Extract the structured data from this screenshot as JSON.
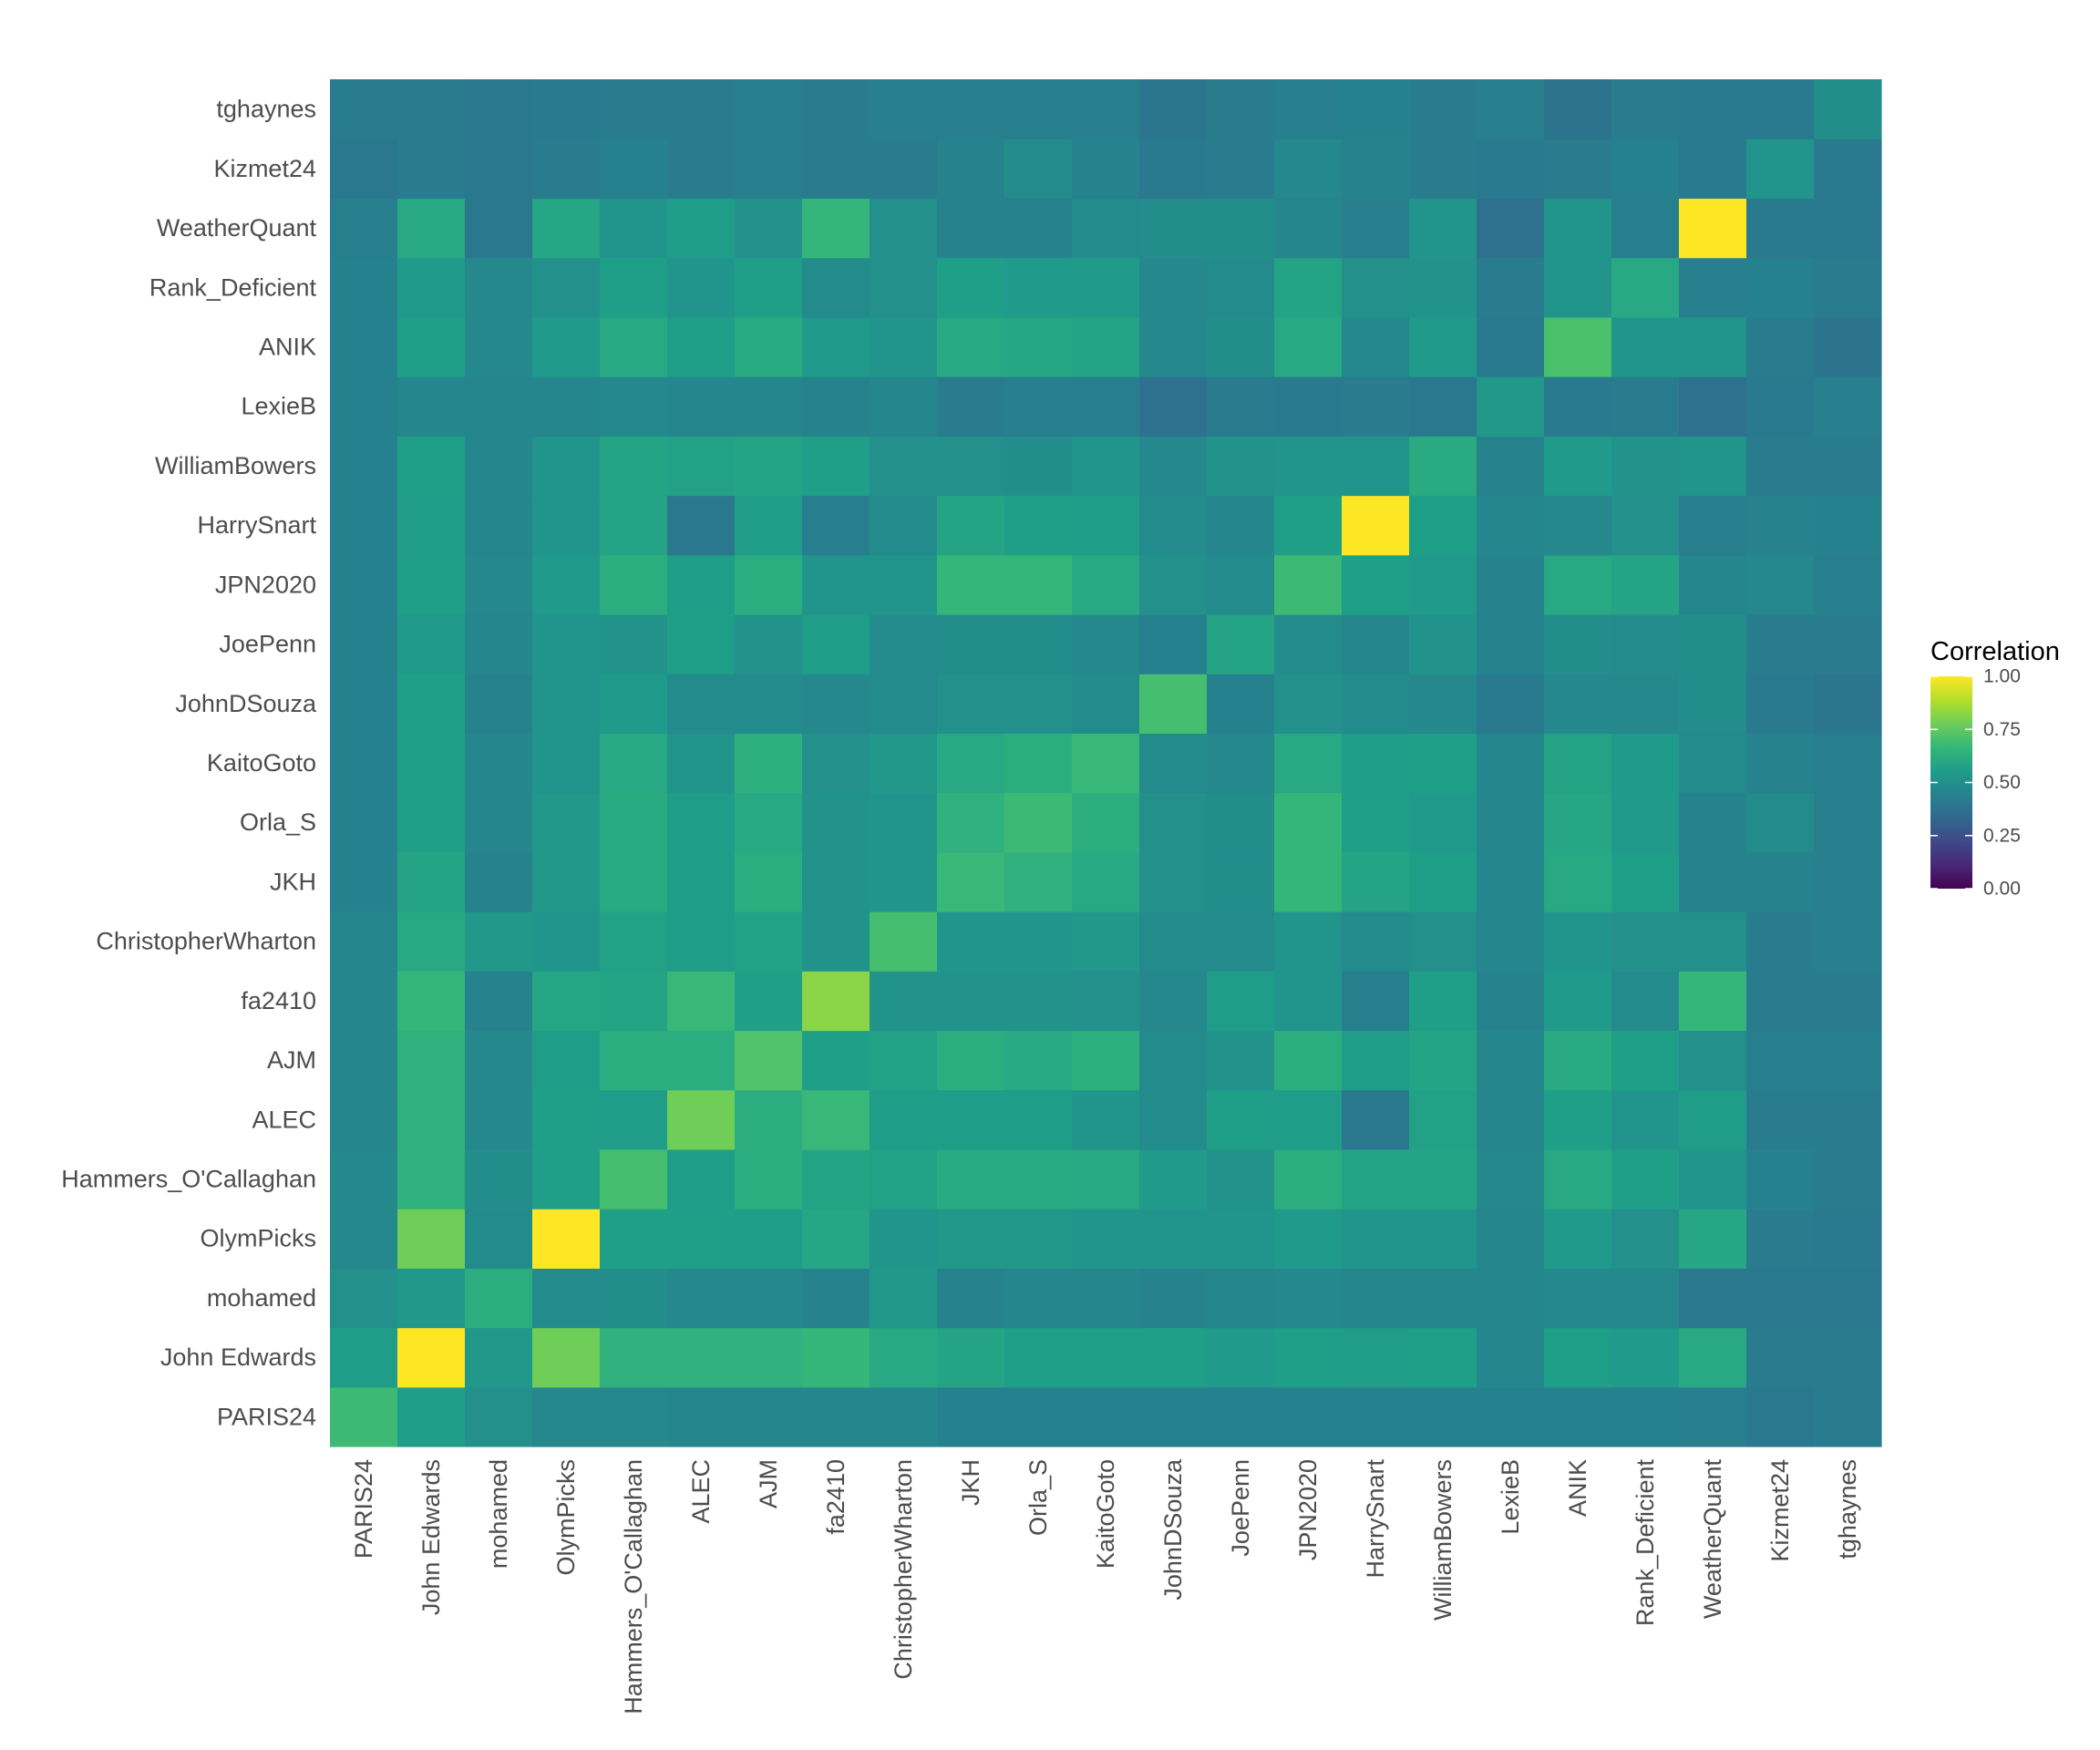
{
  "chart_data": {
    "type": "heatmap",
    "title": "",
    "xlabel": "",
    "ylabel": "",
    "x_categories": [
      "PARIS24",
      "John Edwards",
      "mohamed",
      "OlymPicks",
      "Hammers_O'Callaghan",
      "ALEC",
      "AJM",
      "fa2410",
      "ChristopherWharton",
      "JKH",
      "Orla_S",
      "KaitoGoto",
      "JohnDSouza",
      "JoePenn",
      "JPN2020",
      "HarrySnart",
      "WilliamBowers",
      "LexieB",
      "ANIK",
      "Rank_Deficient",
      "WeatherQuant",
      "Kizmet24",
      "tghaynes"
    ],
    "y_categories_bottom_to_top": [
      "PARIS24",
      "John Edwards",
      "mohamed",
      "OlymPicks",
      "Hammers_O'Callaghan",
      "ALEC",
      "AJM",
      "fa2410",
      "ChristopherWharton",
      "JKH",
      "Orla_S",
      "KaitoGoto",
      "JohnDSouza",
      "JoePenn",
      "JPN2020",
      "HarrySnart",
      "WilliamBowers",
      "LexieB",
      "ANIK",
      "Rank_Deficient",
      "WeatherQuant",
      "Kizmet24",
      "tghaynes"
    ],
    "rows_bottom_to_top": [
      [
        0.68,
        0.55,
        0.5,
        0.47,
        0.47,
        0.46,
        0.46,
        0.46,
        0.46,
        0.44,
        0.44,
        0.44,
        0.44,
        0.44,
        0.44,
        0.44,
        0.44,
        0.44,
        0.44,
        0.44,
        0.43,
        0.4,
        0.42
      ],
      [
        0.55,
        1.0,
        0.53,
        0.78,
        0.64,
        0.64,
        0.64,
        0.66,
        0.6,
        0.58,
        0.56,
        0.56,
        0.56,
        0.54,
        0.56,
        0.55,
        0.56,
        0.46,
        0.56,
        0.54,
        0.6,
        0.42,
        0.42
      ],
      [
        0.5,
        0.53,
        0.62,
        0.48,
        0.49,
        0.47,
        0.47,
        0.45,
        0.53,
        0.45,
        0.46,
        0.46,
        0.45,
        0.46,
        0.47,
        0.46,
        0.46,
        0.46,
        0.47,
        0.47,
        0.4,
        0.4,
        0.4
      ],
      [
        0.47,
        0.78,
        0.48,
        1.0,
        0.56,
        0.56,
        0.55,
        0.59,
        0.52,
        0.53,
        0.53,
        0.52,
        0.52,
        0.52,
        0.54,
        0.52,
        0.52,
        0.46,
        0.54,
        0.5,
        0.59,
        0.42,
        0.41
      ],
      [
        0.47,
        0.64,
        0.49,
        0.56,
        0.7,
        0.55,
        0.62,
        0.58,
        0.57,
        0.61,
        0.61,
        0.6,
        0.54,
        0.51,
        0.62,
        0.58,
        0.58,
        0.47,
        0.6,
        0.56,
        0.52,
        0.44,
        0.42
      ],
      [
        0.46,
        0.64,
        0.47,
        0.56,
        0.55,
        0.78,
        0.62,
        0.67,
        0.55,
        0.55,
        0.55,
        0.52,
        0.48,
        0.56,
        0.55,
        0.4,
        0.57,
        0.46,
        0.56,
        0.52,
        0.55,
        0.42,
        0.42
      ],
      [
        0.46,
        0.64,
        0.47,
        0.55,
        0.62,
        0.62,
        0.72,
        0.56,
        0.57,
        0.62,
        0.6,
        0.63,
        0.48,
        0.51,
        0.62,
        0.55,
        0.58,
        0.46,
        0.61,
        0.56,
        0.5,
        0.43,
        0.43
      ],
      [
        0.46,
        0.66,
        0.45,
        0.59,
        0.58,
        0.67,
        0.56,
        0.82,
        0.51,
        0.51,
        0.51,
        0.5,
        0.47,
        0.55,
        0.52,
        0.43,
        0.56,
        0.45,
        0.54,
        0.48,
        0.66,
        0.42,
        0.42
      ],
      [
        0.46,
        0.6,
        0.53,
        0.52,
        0.57,
        0.55,
        0.57,
        0.51,
        0.7,
        0.52,
        0.52,
        0.53,
        0.48,
        0.48,
        0.52,
        0.48,
        0.5,
        0.46,
        0.52,
        0.5,
        0.5,
        0.42,
        0.43
      ],
      [
        0.44,
        0.58,
        0.45,
        0.53,
        0.61,
        0.55,
        0.62,
        0.51,
        0.52,
        0.67,
        0.64,
        0.6,
        0.5,
        0.49,
        0.66,
        0.58,
        0.56,
        0.46,
        0.6,
        0.56,
        0.45,
        0.45,
        0.43
      ],
      [
        0.44,
        0.56,
        0.46,
        0.53,
        0.61,
        0.55,
        0.6,
        0.51,
        0.52,
        0.64,
        0.68,
        0.62,
        0.5,
        0.49,
        0.66,
        0.56,
        0.54,
        0.46,
        0.59,
        0.54,
        0.45,
        0.48,
        0.43
      ],
      [
        0.44,
        0.56,
        0.46,
        0.52,
        0.6,
        0.52,
        0.63,
        0.5,
        0.53,
        0.6,
        0.62,
        0.67,
        0.48,
        0.47,
        0.6,
        0.55,
        0.56,
        0.46,
        0.58,
        0.54,
        0.48,
        0.45,
        0.43
      ],
      [
        0.44,
        0.56,
        0.45,
        0.52,
        0.54,
        0.48,
        0.48,
        0.47,
        0.48,
        0.5,
        0.5,
        0.48,
        0.7,
        0.44,
        0.5,
        0.48,
        0.47,
        0.41,
        0.47,
        0.47,
        0.49,
        0.41,
        0.39
      ],
      [
        0.44,
        0.54,
        0.46,
        0.52,
        0.51,
        0.56,
        0.51,
        0.55,
        0.48,
        0.49,
        0.49,
        0.47,
        0.44,
        0.58,
        0.48,
        0.46,
        0.51,
        0.45,
        0.49,
        0.48,
        0.49,
        0.42,
        0.42
      ],
      [
        0.44,
        0.56,
        0.47,
        0.54,
        0.62,
        0.55,
        0.62,
        0.52,
        0.52,
        0.66,
        0.66,
        0.6,
        0.5,
        0.48,
        0.68,
        0.56,
        0.54,
        0.45,
        0.6,
        0.58,
        0.46,
        0.47,
        0.43
      ],
      [
        0.44,
        0.55,
        0.46,
        0.52,
        0.58,
        0.4,
        0.55,
        0.43,
        0.48,
        0.58,
        0.56,
        0.55,
        0.48,
        0.46,
        0.56,
        1.0,
        0.56,
        0.46,
        0.47,
        0.5,
        0.43,
        0.45,
        0.44
      ],
      [
        0.44,
        0.56,
        0.46,
        0.52,
        0.58,
        0.57,
        0.58,
        0.56,
        0.5,
        0.5,
        0.49,
        0.52,
        0.47,
        0.51,
        0.52,
        0.52,
        0.61,
        0.45,
        0.54,
        0.51,
        0.52,
        0.42,
        0.42
      ],
      [
        0.44,
        0.46,
        0.46,
        0.46,
        0.47,
        0.46,
        0.46,
        0.45,
        0.46,
        0.42,
        0.43,
        0.43,
        0.37,
        0.42,
        0.41,
        0.42,
        0.4,
        0.53,
        0.41,
        0.42,
        0.37,
        0.41,
        0.43
      ],
      [
        0.44,
        0.56,
        0.47,
        0.54,
        0.6,
        0.56,
        0.61,
        0.54,
        0.52,
        0.6,
        0.59,
        0.58,
        0.47,
        0.49,
        0.6,
        0.47,
        0.54,
        0.41,
        0.71,
        0.52,
        0.52,
        0.42,
        0.38
      ],
      [
        0.44,
        0.54,
        0.47,
        0.5,
        0.56,
        0.52,
        0.56,
        0.48,
        0.5,
        0.56,
        0.54,
        0.54,
        0.47,
        0.48,
        0.58,
        0.5,
        0.51,
        0.42,
        0.52,
        0.6,
        0.43,
        0.44,
        0.42
      ],
      [
        0.43,
        0.6,
        0.4,
        0.59,
        0.52,
        0.55,
        0.5,
        0.66,
        0.5,
        0.45,
        0.45,
        0.48,
        0.49,
        0.49,
        0.46,
        0.43,
        0.52,
        0.37,
        0.52,
        0.43,
        1.0,
        0.41,
        0.41
      ],
      [
        0.4,
        0.42,
        0.4,
        0.42,
        0.44,
        0.42,
        0.43,
        0.42,
        0.42,
        0.45,
        0.48,
        0.45,
        0.41,
        0.42,
        0.47,
        0.45,
        0.42,
        0.41,
        0.42,
        0.44,
        0.41,
        0.52,
        0.41
      ],
      [
        0.42,
        0.42,
        0.4,
        0.41,
        0.42,
        0.42,
        0.43,
        0.42,
        0.43,
        0.43,
        0.43,
        0.43,
        0.39,
        0.42,
        0.43,
        0.44,
        0.42,
        0.43,
        0.38,
        0.42,
        0.41,
        0.41,
        0.49
      ]
    ],
    "color_scale": "viridis",
    "legend": {
      "title": "Correlation",
      "ticks": [
        "1.00",
        "0.75",
        "0.50",
        "0.25",
        "0.00"
      ],
      "range": [
        0,
        1
      ],
      "placement": "right"
    }
  }
}
